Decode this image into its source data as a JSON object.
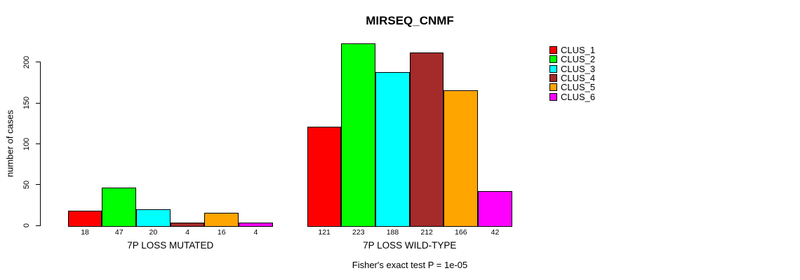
{
  "chart_data": {
    "type": "bar",
    "title": "MIRSEQ_CNMF",
    "ylabel": "number of cases",
    "ylim": [
      0,
      200
    ],
    "yticks": [
      0,
      50,
      100,
      150,
      200
    ],
    "categories": [
      "7P LOSS MUTATED",
      "7P LOSS WILD-TYPE"
    ],
    "series": [
      {
        "name": "CLUS_1",
        "color": "#FF0000",
        "values": [
          18,
          121
        ]
      },
      {
        "name": "CLUS_2",
        "color": "#00FF00",
        "values": [
          47,
          223
        ]
      },
      {
        "name": "CLUS_3",
        "color": "#00FFFF",
        "values": [
          20,
          188
        ]
      },
      {
        "name": "CLUS_4",
        "color": "#A52A2A",
        "values": [
          4,
          212
        ]
      },
      {
        "name": "CLUS_5",
        "color": "#FFA500",
        "values": [
          16,
          166
        ]
      },
      {
        "name": "CLUS_6",
        "color": "#FF00FF",
        "values": [
          4,
          42
        ]
      }
    ],
    "bar_value_labels_shown": true,
    "legend_position": "right",
    "grid": false,
    "annotation": "Fisher's exact test P = 1e-05"
  },
  "colors": {
    "background": "#FFFFFF",
    "axis": "#000000",
    "text": "#000000"
  }
}
